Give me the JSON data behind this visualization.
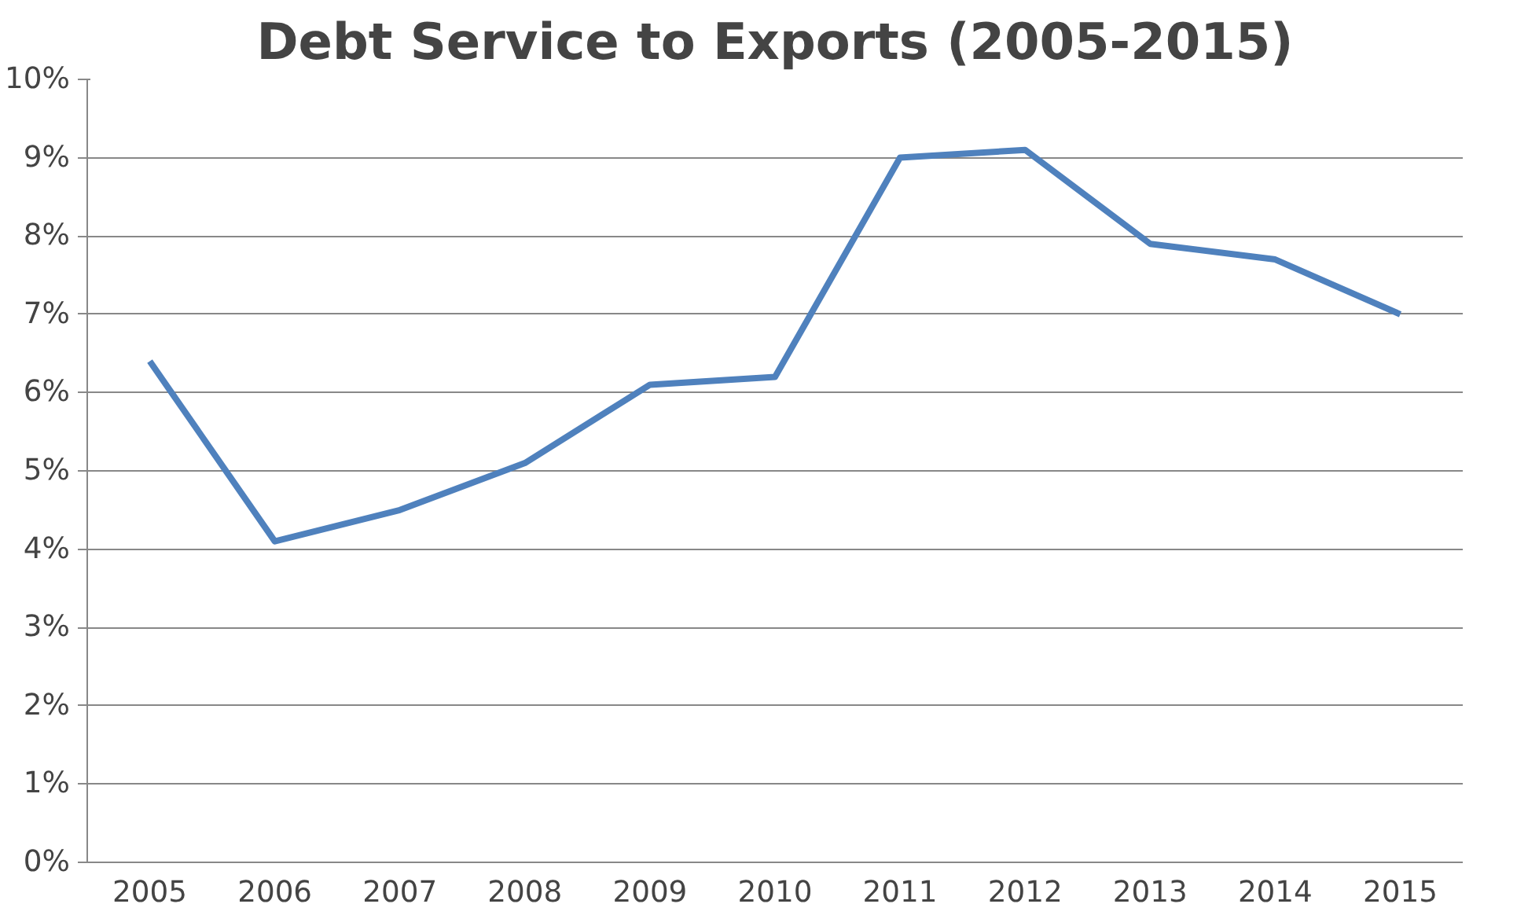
{
  "chart_data": {
    "type": "line",
    "title": "Debt Service to Exports (2005-2015)",
    "categories": [
      "2005",
      "2006",
      "2007",
      "2008",
      "2009",
      "2010",
      "2011",
      "2012",
      "2013",
      "2014",
      "2015"
    ],
    "series": [
      {
        "color": "#4f81bd",
        "values": [
          6.4,
          4.1,
          4.5,
          5.1,
          6.1,
          6.2,
          9.0,
          9.1,
          7.9,
          7.7,
          7.0
        ]
      }
    ],
    "ylim": [
      0,
      10
    ],
    "yticks": [
      {
        "value": 0,
        "label": "0%"
      },
      {
        "value": 1,
        "label": "1%"
      },
      {
        "value": 2,
        "label": "2%"
      },
      {
        "value": 3,
        "label": "3%"
      },
      {
        "value": 4,
        "label": "4%"
      },
      {
        "value": 5,
        "label": "5%"
      },
      {
        "value": 6,
        "label": "6%"
      },
      {
        "value": 7,
        "label": "7%"
      },
      {
        "value": 8,
        "label": "8%"
      },
      {
        "value": 9,
        "label": "9%"
      },
      {
        "value": 10,
        "label": "10%"
      }
    ],
    "grid": "y",
    "marker": "none",
    "line_style": "solid"
  }
}
